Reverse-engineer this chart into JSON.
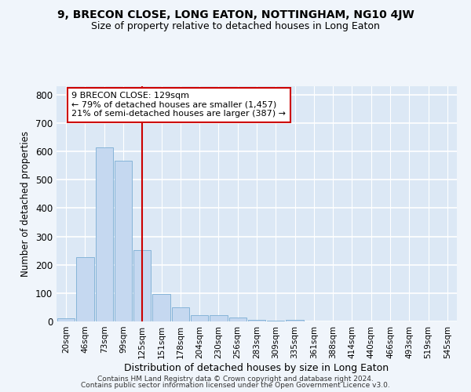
{
  "title1": "9, BRECON CLOSE, LONG EATON, NOTTINGHAM, NG10 4JW",
  "title2": "Size of property relative to detached houses in Long Eaton",
  "xlabel": "Distribution of detached houses by size in Long Eaton",
  "ylabel": "Number of detached properties",
  "bar_labels": [
    "20sqm",
    "46sqm",
    "73sqm",
    "99sqm",
    "125sqm",
    "151sqm",
    "178sqm",
    "204sqm",
    "230sqm",
    "256sqm",
    "283sqm",
    "309sqm",
    "335sqm",
    "361sqm",
    "388sqm",
    "414sqm",
    "440sqm",
    "466sqm",
    "493sqm",
    "519sqm",
    "545sqm"
  ],
  "bar_values": [
    10,
    228,
    615,
    567,
    252,
    97,
    50,
    22,
    22,
    14,
    5,
    4,
    5,
    0,
    0,
    0,
    0,
    0,
    0,
    0,
    0
  ],
  "bar_color": "#c5d8f0",
  "bar_edge_color": "#7aadd4",
  "vline_x": 4,
  "vline_color": "#cc0000",
  "annotation_line1": "9 BRECON CLOSE: 129sqm",
  "annotation_line2": "← 79% of detached houses are smaller (1,457)",
  "annotation_line3": "21% of semi-detached houses are larger (387) →",
  "annotation_box_color": "#cc0000",
  "ylim": [
    0,
    830
  ],
  "yticks": [
    0,
    100,
    200,
    300,
    400,
    500,
    600,
    700,
    800
  ],
  "bg_color": "#dce8f5",
  "grid_color": "#ffffff",
  "fig_bg_color": "#f0f5fb",
  "footer1": "Contains HM Land Registry data © Crown copyright and database right 2024.",
  "footer2": "Contains public sector information licensed under the Open Government Licence v3.0."
}
